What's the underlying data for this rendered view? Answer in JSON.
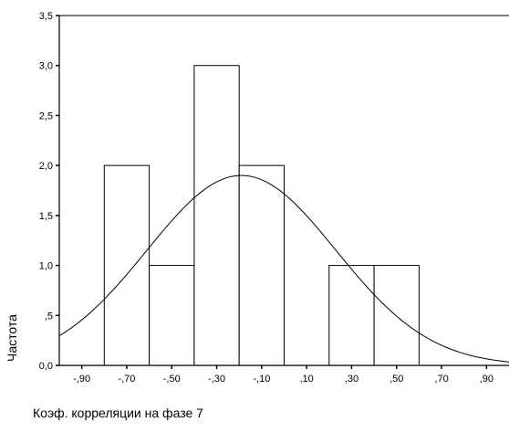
{
  "chart_data": {
    "type": "bar",
    "subtype": "histogram",
    "title": "",
    "xlabel": "Коэф. корреляции на фазе 7",
    "ylabel": "Частота",
    "bin_edges": [
      -0.8,
      -0.6,
      -0.4,
      -0.2,
      0.0,
      0.2,
      0.4,
      0.6
    ],
    "values": [
      2,
      1,
      3,
      2,
      0,
      1,
      1
    ],
    "x_ticks": [
      {
        "value": -0.9,
        "label": "-,90"
      },
      {
        "value": -0.7,
        "label": "-,70"
      },
      {
        "value": -0.5,
        "label": "-,50"
      },
      {
        "value": -0.3,
        "label": "-,30"
      },
      {
        "value": -0.1,
        "label": "-,10"
      },
      {
        "value": 0.1,
        "label": ",10"
      },
      {
        "value": 0.3,
        "label": ",30"
      },
      {
        "value": 0.5,
        "label": ",50"
      },
      {
        "value": 0.7,
        "label": ",70"
      },
      {
        "value": 0.9,
        "label": ",90"
      }
    ],
    "y_ticks": [
      {
        "value": 0.0,
        "label": "0,0"
      },
      {
        "value": 0.5,
        "label": ",5"
      },
      {
        "value": 1.0,
        "label": "1,0"
      },
      {
        "value": 1.5,
        "label": "1,5"
      },
      {
        "value": 2.0,
        "label": "2,0"
      },
      {
        "value": 2.5,
        "label": "2,5"
      },
      {
        "value": 3.0,
        "label": "3,0"
      },
      {
        "value": 3.5,
        "label": "3,5"
      }
    ],
    "xlim": [
      -1.0,
      1.0
    ],
    "ylim": [
      0,
      3.5
    ],
    "normal_curve": {
      "mean": -0.19,
      "sd": 0.42,
      "peak": 1.9
    },
    "grid": false,
    "legend": "none",
    "colors": {
      "bar_fill": "#ffffff",
      "stroke": "#000000"
    }
  }
}
